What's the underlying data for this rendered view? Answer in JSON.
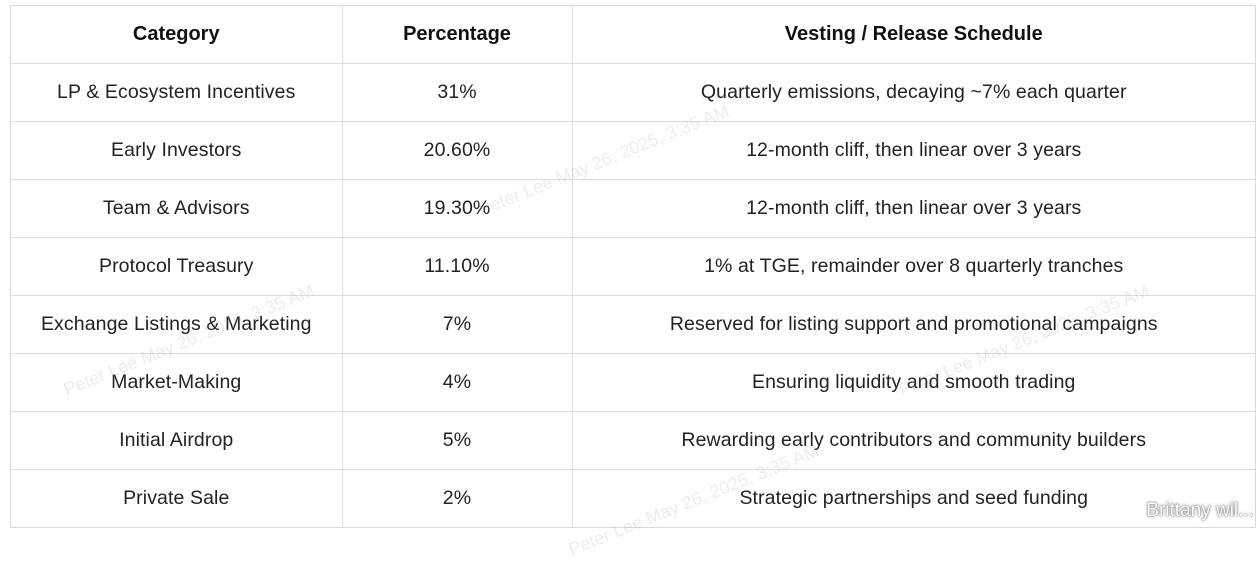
{
  "table": {
    "headers": [
      "Category",
      "Percentage",
      "Vesting / Release Schedule"
    ],
    "rows": [
      [
        "LP & Ecosystem Incentives",
        "31%",
        "Quarterly emissions, decaying ~7% each quarter"
      ],
      [
        "Early Investors",
        "20.60%",
        "12-month cliff, then linear over 3 years"
      ],
      [
        "Team & Advisors",
        "19.30%",
        "12-month cliff, then linear over 3 years"
      ],
      [
        "Protocol Treasury",
        "11.10%",
        "1% at TGE, remainder over 8 quarterly tranches"
      ],
      [
        "Exchange Listings & Marketing",
        "7%",
        "Reserved for listing support and promotional campaigns"
      ],
      [
        "Market-Making",
        "4%",
        "Ensuring liquidity and smooth trading"
      ],
      [
        "Initial Airdrop",
        "5%",
        "Rewarding early contributors and community builders"
      ],
      [
        "Private Sale",
        "2%",
        "Strategic partnerships and seed funding"
      ]
    ]
  },
  "watermarks": [
    "Peter Lee May 26, 2025, 3:35 AM",
    "Peter Lee May 26, 2025, 3:35 AM",
    "Peter Lee May 26, 2025, 3:35 AM",
    "Peter Lee May 26, 2025, 3:35 AM"
  ],
  "footer": {
    "handle": "Brittany wil...",
    "icon": "share-icon"
  }
}
